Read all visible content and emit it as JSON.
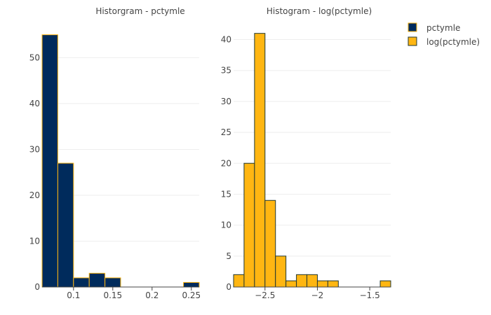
{
  "chart_data": [
    {
      "type": "bar",
      "title": "Historgram - pctymle",
      "xlabel": "",
      "ylabel": "",
      "bin_width": 0.02,
      "bins": [
        {
          "start": 0.06,
          "end": 0.08,
          "count": 55
        },
        {
          "start": 0.08,
          "end": 0.1,
          "count": 27
        },
        {
          "start": 0.1,
          "end": 0.12,
          "count": 2
        },
        {
          "start": 0.12,
          "end": 0.14,
          "count": 3
        },
        {
          "start": 0.14,
          "end": 0.16,
          "count": 2
        },
        {
          "start": 0.16,
          "end": 0.18,
          "count": 0
        },
        {
          "start": 0.18,
          "end": 0.2,
          "count": 0
        },
        {
          "start": 0.2,
          "end": 0.22,
          "count": 0
        },
        {
          "start": 0.22,
          "end": 0.24,
          "count": 0
        },
        {
          "start": 0.24,
          "end": 0.26,
          "count": 1
        }
      ],
      "xlim": [
        0.06,
        0.26
      ],
      "ylim": [
        0,
        58
      ],
      "x_ticks": [
        0.1,
        0.15,
        0.2,
        0.25
      ],
      "x_tick_labels": [
        "0.1",
        "0.15",
        "0.2",
        "0.25"
      ],
      "y_ticks": [
        0,
        10,
        20,
        30,
        40,
        50
      ],
      "y_tick_labels": [
        "0",
        "10",
        "20",
        "30",
        "40",
        "50"
      ],
      "fill_color": "#002B5C",
      "edge_color": "#FFB612",
      "grid": true
    },
    {
      "type": "bar",
      "title": "Histogram - log(pctymle)",
      "xlabel": "",
      "ylabel": "",
      "bin_width": 0.1,
      "bins": [
        {
          "start": -2.8,
          "end": -2.7,
          "count": 2
        },
        {
          "start": -2.7,
          "end": -2.6,
          "count": 20
        },
        {
          "start": -2.6,
          "end": -2.5,
          "count": 41
        },
        {
          "start": -2.5,
          "end": -2.4,
          "count": 14
        },
        {
          "start": -2.4,
          "end": -2.3,
          "count": 5
        },
        {
          "start": -2.3,
          "end": -2.2,
          "count": 1
        },
        {
          "start": -2.2,
          "end": -2.1,
          "count": 2
        },
        {
          "start": -2.1,
          "end": -2.0,
          "count": 2
        },
        {
          "start": -2.0,
          "end": -1.9,
          "count": 1
        },
        {
          "start": -1.9,
          "end": -1.8,
          "count": 1
        },
        {
          "start": -1.8,
          "end": -1.7,
          "count": 0
        },
        {
          "start": -1.7,
          "end": -1.6,
          "count": 0
        },
        {
          "start": -1.6,
          "end": -1.5,
          "count": 0
        },
        {
          "start": -1.5,
          "end": -1.4,
          "count": 0
        },
        {
          "start": -1.4,
          "end": -1.3,
          "count": 1
        }
      ],
      "xlim": [
        -2.8,
        -1.3
      ],
      "ylim": [
        0,
        43
      ],
      "x_ticks": [
        -2.5,
        -2,
        -1.5
      ],
      "x_tick_labels": [
        "−2.5",
        "−2",
        "−1.5"
      ],
      "y_ticks": [
        0,
        5,
        10,
        15,
        20,
        25,
        30,
        35,
        40
      ],
      "y_tick_labels": [
        "0",
        "5",
        "10",
        "15",
        "20",
        "25",
        "30",
        "35",
        "40"
      ],
      "fill_color": "#FFB612",
      "edge_color": "#203731",
      "grid": true
    }
  ],
  "legend": {
    "placement": "top-right",
    "items": [
      {
        "label": "pctymle",
        "fill_color": "#002B5C",
        "edge_color": "#FFB612"
      },
      {
        "label": "log(pctymle)",
        "fill_color": "#FFB612",
        "edge_color": "#203731"
      }
    ]
  }
}
